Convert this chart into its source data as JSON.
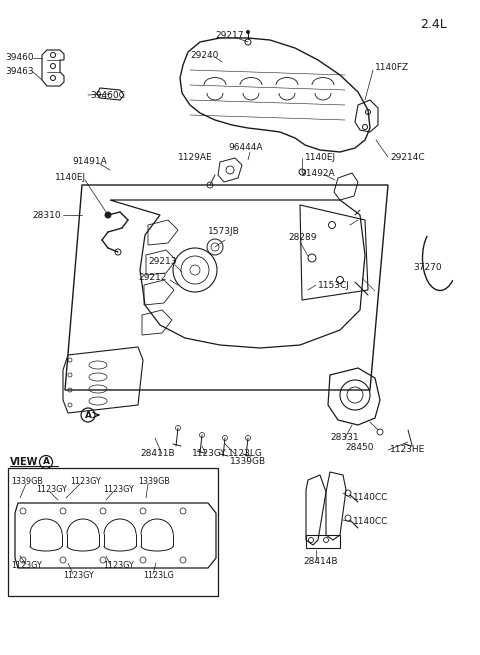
{
  "title": "2.4L",
  "bg_color": "#ffffff",
  "line_color": "#1a1a1a",
  "figsize": [
    4.8,
    6.55
  ],
  "dpi": 100,
  "labels": {
    "part_39460": "39460",
    "part_39463": "39463",
    "part_39460C": "39460C",
    "part_29217": "29217",
    "part_29240": "29240",
    "part_1140FZ": "1140FZ",
    "part_91491A": "91491A",
    "part_1140EJ_l": "1140EJ",
    "part_1129AE": "1129AE",
    "part_96444A": "96444A",
    "part_1140EJ_r": "1140EJ",
    "part_29214C": "29214C",
    "part_91492A": "91492A",
    "part_37270": "37270",
    "part_1573JB": "1573JB",
    "part_28289": "28289",
    "part_28310": "28310",
    "part_29213": "29213",
    "part_1153CJ": "1153CJ",
    "part_29212": "29212",
    "part_28411B": "28411B",
    "part_1123GY_b": "1123GY",
    "part_1123LG": "1123LG",
    "part_1339GB": "1339GB",
    "part_28331": "28331",
    "part_28450": "28450",
    "part_1123HE": "1123HE",
    "view_a": "VIEW",
    "part_1339GB_tl": "1339GB",
    "part_1123GY_tl": "1123GY",
    "part_1339GB_tr": "1339GB",
    "part_1123GY_tr2": "1123GY",
    "part_1123GY_tr": "1123GY",
    "part_1123GY_trc": "1123GY",
    "part_1123GY_ml": "1123GY",
    "part_1123GY_mr": "1123GY",
    "part_1123GY_bl": "1123GY",
    "part_1123GY_bm": "1123GY",
    "part_1123GY_br": "1123GY",
    "part_1123LG_br": "1123LG",
    "part_1140CC_t": "1140CC",
    "part_1140CC_b": "1140CC",
    "part_28414B": "28414B"
  }
}
